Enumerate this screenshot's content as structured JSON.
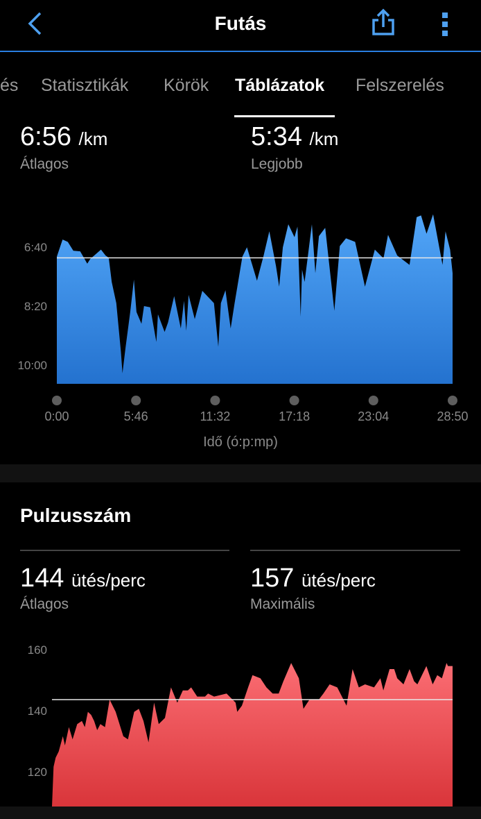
{
  "header": {
    "title": "Futás",
    "back_icon": "chevron-left-icon",
    "share_icon": "share-icon",
    "more_icon": "more-vertical-icon",
    "accent": "#4ea0f0"
  },
  "tabs": [
    {
      "label": "Áttekintés",
      "visible_fragment": "és"
    },
    {
      "label": "Statisztikák"
    },
    {
      "label": "Körök"
    },
    {
      "label": "Táblázatok",
      "active": true
    },
    {
      "label": "Felszerelés"
    }
  ],
  "pace": {
    "avg": {
      "value": "6:56",
      "unit": "/km",
      "label": "Átlagos"
    },
    "best": {
      "value": "5:34",
      "unit": "/km",
      "label": "Legjobb"
    }
  },
  "heart_rate": {
    "title": "Pulzusszám",
    "avg": {
      "value": "144",
      "unit": "ütés/perc",
      "label": "Átlagos"
    },
    "max": {
      "value": "157",
      "unit": "ütés/perc",
      "label": "Maximális"
    }
  },
  "chart_data": [
    {
      "type": "area",
      "xlabel": "Idő (ó:p:mp)",
      "x_ticks": [
        "0:00",
        "5:46",
        "11:32",
        "17:18",
        "23:04",
        "28:50"
      ],
      "y_ticks": [
        "6:40",
        "8:20",
        "10:00"
      ],
      "y_inverted": true,
      "ylim": [
        "5:20",
        "10:30"
      ],
      "xlim": [
        "0:00",
        "28:50"
      ],
      "average_line": "6:56",
      "color_top": "#52a6f8",
      "color_bottom": "#2472cf",
      "points": [
        [
          "0:00",
          "6:54"
        ],
        [
          "0:25",
          "6:25"
        ],
        [
          "0:48",
          "6:29"
        ],
        [
          "1:12",
          "6:44"
        ],
        [
          "1:42",
          "6:45"
        ],
        [
          "2:13",
          "7:06"
        ],
        [
          "2:26",
          "6:58"
        ],
        [
          "3:13",
          "6:42"
        ],
        [
          "3:33",
          "6:52"
        ],
        [
          "3:47",
          "6:56"
        ],
        [
          "4:00",
          "7:37"
        ],
        [
          "4:20",
          "8:13"
        ],
        [
          "4:40",
          "9:35"
        ],
        [
          "4:47",
          "10:12"
        ],
        [
          "5:01",
          "9:27"
        ],
        [
          "5:21",
          "8:28"
        ],
        [
          "5:37",
          "7:33"
        ],
        [
          "5:48",
          "8:28"
        ],
        [
          "6:10",
          "8:48"
        ],
        [
          "6:21",
          "8:18"
        ],
        [
          "6:48",
          "8:20"
        ],
        [
          "7:15",
          "9:19"
        ],
        [
          "7:22",
          "8:32"
        ],
        [
          "7:51",
          "9:02"
        ],
        [
          "8:06",
          "8:46"
        ],
        [
          "8:33",
          "8:01"
        ],
        [
          "9:02",
          "8:56"
        ],
        [
          "9:16",
          "8:09"
        ],
        [
          "9:26",
          "9:00"
        ],
        [
          "9:36",
          "7:59"
        ],
        [
          "10:03",
          "8:40"
        ],
        [
          "10:36",
          "7:52"
        ],
        [
          "11:27",
          "8:13"
        ],
        [
          "11:46",
          "9:27"
        ],
        [
          "11:57",
          "8:13"
        ],
        [
          "12:17",
          "7:51"
        ],
        [
          "12:40",
          "8:56"
        ],
        [
          "12:57",
          "8:13"
        ],
        [
          "13:31",
          "6:54"
        ],
        [
          "13:51",
          "6:38"
        ],
        [
          "14:35",
          "7:35"
        ],
        [
          "15:04",
          "6:52"
        ],
        [
          "15:29",
          "6:11"
        ],
        [
          "15:58",
          "7:10"
        ],
        [
          "16:12",
          "7:45"
        ],
        [
          "16:28",
          "6:38"
        ],
        [
          "16:52",
          "5:59"
        ],
        [
          "17:19",
          "6:21"
        ],
        [
          "17:32",
          "6:03"
        ],
        [
          "17:46",
          "8:36"
        ],
        [
          "17:52",
          "7:16"
        ],
        [
          "18:03",
          "7:37"
        ],
        [
          "18:35",
          "5:59"
        ],
        [
          "18:50",
          "7:22"
        ],
        [
          "19:06",
          "6:19"
        ],
        [
          "19:33",
          "6:05"
        ],
        [
          "20:13",
          "8:26"
        ],
        [
          "20:37",
          "6:36"
        ],
        [
          "21:04",
          "6:23"
        ],
        [
          "21:44",
          "6:29"
        ],
        [
          "22:27",
          "7:45"
        ],
        [
          "23:10",
          "6:42"
        ],
        [
          "23:48",
          "6:57"
        ],
        [
          "24:08",
          "6:17"
        ],
        [
          "24:48",
          "6:52"
        ],
        [
          "25:42",
          "7:08"
        ],
        [
          "26:13",
          "5:47"
        ],
        [
          "26:32",
          "5:44"
        ],
        [
          "26:56",
          "6:15"
        ],
        [
          "27:25",
          "5:42"
        ],
        [
          "28:06",
          "7:08"
        ],
        [
          "28:19",
          "6:11"
        ],
        [
          "28:39",
          "6:42"
        ],
        [
          "28:50",
          "7:22"
        ]
      ]
    },
    {
      "type": "area",
      "y_ticks": [
        "160",
        "140",
        "120"
      ],
      "ylim": [
        109,
        164
      ],
      "xlim": [
        "0:00",
        "28:50"
      ],
      "average_line": 144,
      "color_top": "#fb6d73",
      "color_bottom": "#d9353a",
      "points": [
        [
          "0:00",
          109
        ],
        [
          "0:07",
          122
        ],
        [
          "0:16",
          125
        ],
        [
          "0:29",
          127
        ],
        [
          "0:47",
          132
        ],
        [
          "0:56",
          129
        ],
        [
          "1:13",
          135
        ],
        [
          "1:29",
          131
        ],
        [
          "1:49",
          136
        ],
        [
          "2:09",
          137
        ],
        [
          "2:22",
          135
        ],
        [
          "2:35",
          140
        ],
        [
          "2:49",
          139
        ],
        [
          "3:02",
          137
        ],
        [
          "3:15",
          134
        ],
        [
          "3:29",
          136
        ],
        [
          "3:49",
          135
        ],
        [
          "4:09",
          144
        ],
        [
          "4:35",
          140
        ],
        [
          "5:08",
          132
        ],
        [
          "5:28",
          131
        ],
        [
          "5:55",
          140
        ],
        [
          "6:15",
          141
        ],
        [
          "6:35",
          137
        ],
        [
          "6:57",
          130
        ],
        [
          "7:21",
          143
        ],
        [
          "7:41",
          136
        ],
        [
          "8:08",
          138
        ],
        [
          "8:34",
          148
        ],
        [
          "9:01",
          143
        ],
        [
          "9:25",
          147
        ],
        [
          "9:47",
          147
        ],
        [
          "10:01",
          148
        ],
        [
          "10:27",
          145
        ],
        [
          "11:01",
          145
        ],
        [
          "11:14",
          146
        ],
        [
          "11:40",
          145
        ],
        [
          "12:34",
          146
        ],
        [
          "13:13",
          143
        ],
        [
          "13:20",
          140
        ],
        [
          "13:40",
          142
        ],
        [
          "14:07",
          148
        ],
        [
          "14:26",
          152
        ],
        [
          "15:00",
          151
        ],
        [
          "15:26",
          148
        ],
        [
          "15:53",
          146
        ],
        [
          "16:19",
          146
        ],
        [
          "16:39",
          150
        ],
        [
          "17:13",
          156
        ],
        [
          "17:46",
          151
        ],
        [
          "18:06",
          141
        ],
        [
          "18:32",
          144
        ],
        [
          "19:12",
          144
        ],
        [
          "19:32",
          146
        ],
        [
          "19:59",
          149
        ],
        [
          "20:32",
          148
        ],
        [
          "21:12",
          142
        ],
        [
          "21:38",
          154
        ],
        [
          "22:05",
          148
        ],
        [
          "22:32",
          149
        ],
        [
          "23:11",
          148
        ],
        [
          "23:38",
          151
        ],
        [
          "23:51",
          147
        ],
        [
          "24:18",
          154
        ],
        [
          "24:38",
          154
        ],
        [
          "24:51",
          151
        ],
        [
          "25:18",
          149
        ],
        [
          "25:44",
          154
        ],
        [
          "26:04",
          150
        ],
        [
          "26:18",
          149
        ],
        [
          "26:31",
          151
        ],
        [
          "26:57",
          155
        ],
        [
          "27:24",
          149
        ],
        [
          "27:44",
          152
        ],
        [
          "28:04",
          151
        ],
        [
          "28:24",
          156
        ],
        [
          "28:30",
          155
        ],
        [
          "28:50",
          155
        ]
      ]
    }
  ]
}
